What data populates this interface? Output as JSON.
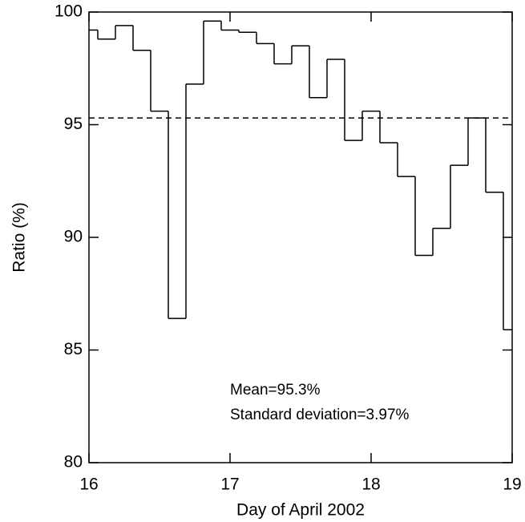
{
  "chart_data": {
    "type": "histogram",
    "xlabel": "Day of April 2002",
    "ylabel": "Ratio (%)",
    "bins": [
      16,
      16.0625,
      16.1875,
      16.3125,
      16.4375,
      16.5625,
      16.6875,
      16.8125,
      16.9375,
      17.0625,
      17.1875,
      17.3125,
      17.4375,
      17.5625,
      17.6875,
      17.8125,
      17.9375,
      18.0625,
      18.1875,
      18.3125,
      18.4375,
      18.5625,
      18.6875,
      18.8125,
      18.9375,
      19
    ],
    "values": [
      99.2,
      98.8,
      99.4,
      98.3,
      95.6,
      86.4,
      96.8,
      99.6,
      99.2,
      99.1,
      98.6,
      97.7,
      98.5,
      96.2,
      97.9,
      94.3,
      95.6,
      94.2,
      92.7,
      89.2,
      90.4,
      93.2,
      95.3,
      92.0,
      85.9
    ],
    "color": "#000000",
    "reference_line": 95.3,
    "annotations": [
      "Mean=95.3%",
      "Standard deviation=3.97%"
    ],
    "xlim": [
      16,
      19
    ],
    "xticks": [
      16,
      17,
      18,
      19
    ],
    "ylim": [
      80,
      100
    ],
    "yticks": [
      80,
      85,
      90,
      95,
      100
    ]
  }
}
